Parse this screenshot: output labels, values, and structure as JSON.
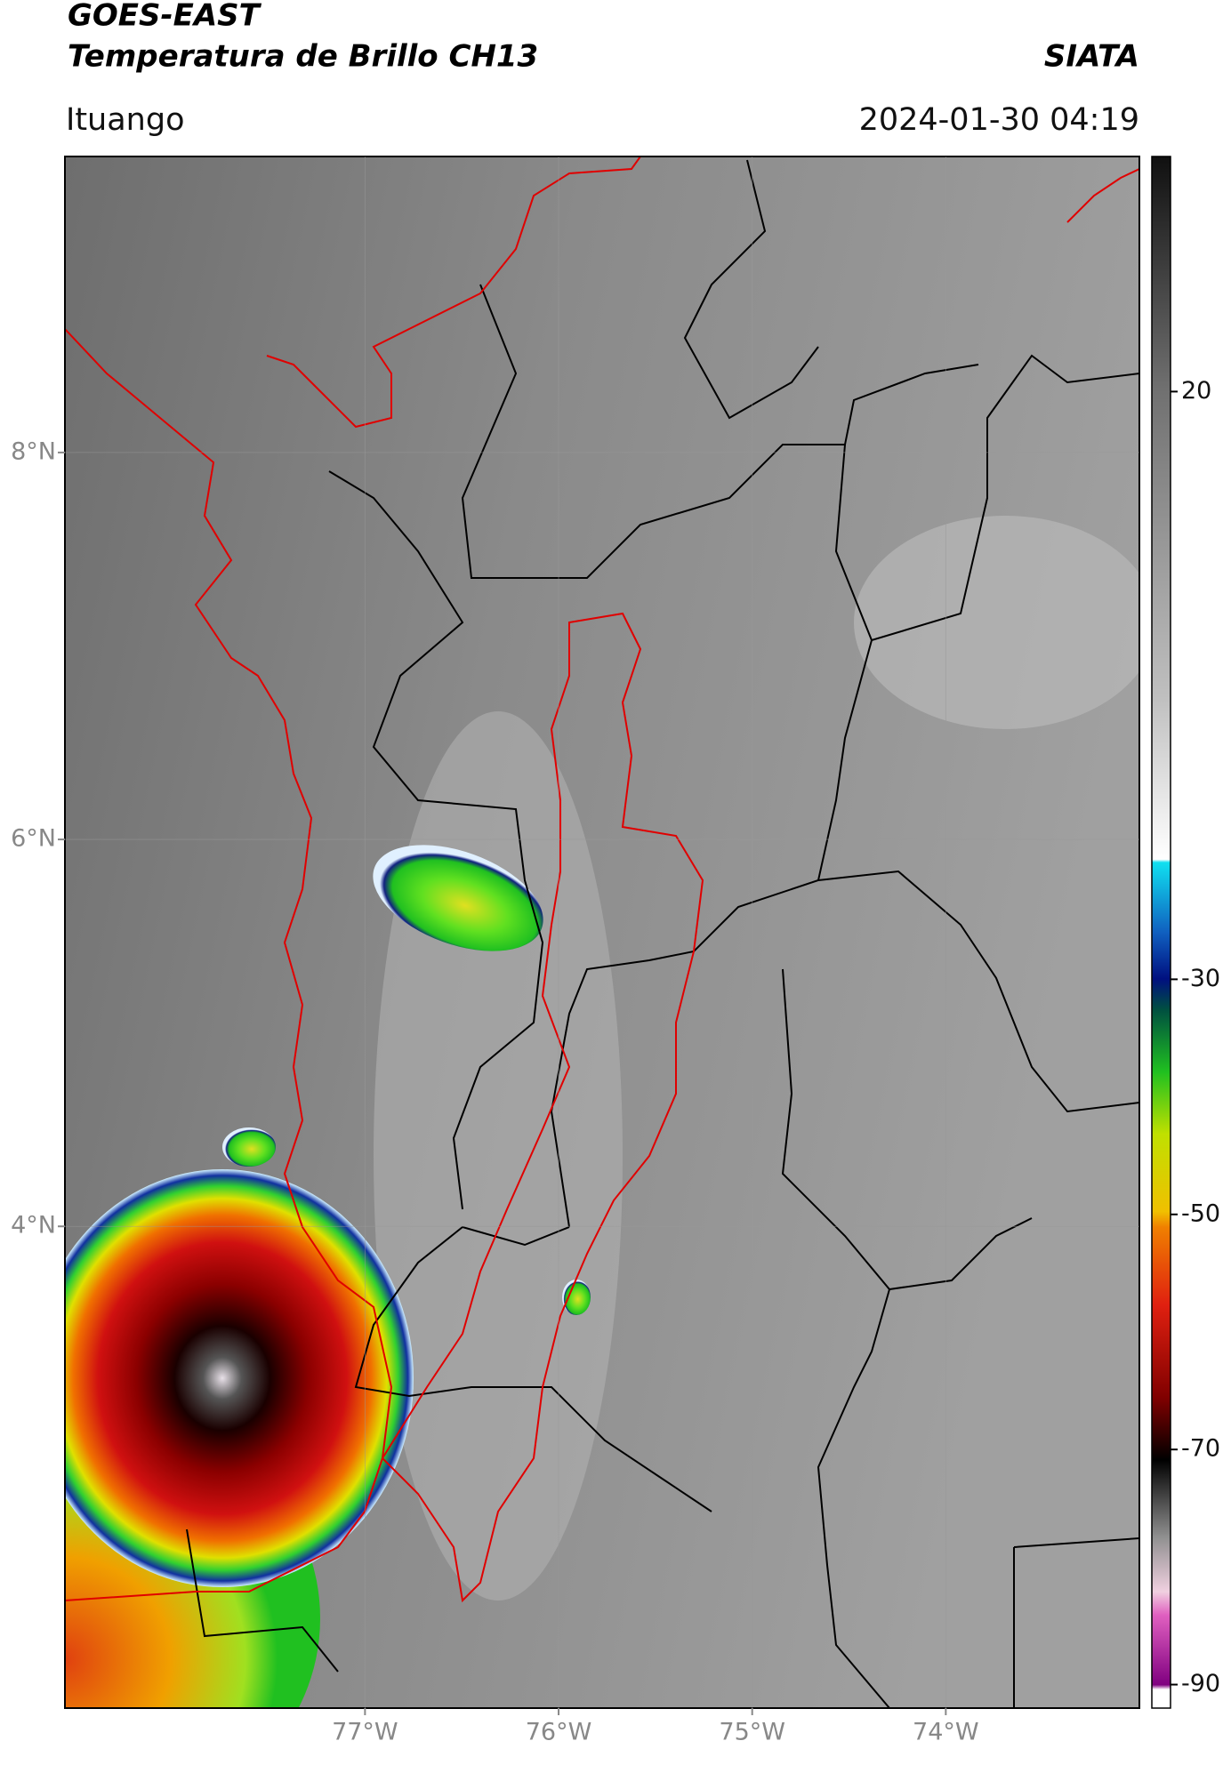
{
  "header": {
    "title": "GOES-EAST",
    "subtitle": "Temperatura de Brillo CH13",
    "source": "SIATA",
    "location": "Ituango",
    "datetime": "2024-01-30 04:19"
  },
  "map": {
    "xlim": [
      -78.55,
      -73.0
    ],
    "ylim": [
      1.51,
      9.53
    ],
    "xticks": [
      {
        "value": -77,
        "label": "77°W"
      },
      {
        "value": -76,
        "label": "76°W"
      },
      {
        "value": -75,
        "label": "75°W"
      },
      {
        "value": -74,
        "label": "74°W"
      }
    ],
    "yticks": [
      {
        "value": 8,
        "label": "8°N"
      },
      {
        "value": 6,
        "label": "6°N"
      },
      {
        "value": 4,
        "label": "4°N"
      }
    ]
  },
  "colorbar": {
    "lim": [
      -92,
      40
    ],
    "ticks": [
      20,
      -30,
      -50,
      -70,
      -90
    ]
  }
}
